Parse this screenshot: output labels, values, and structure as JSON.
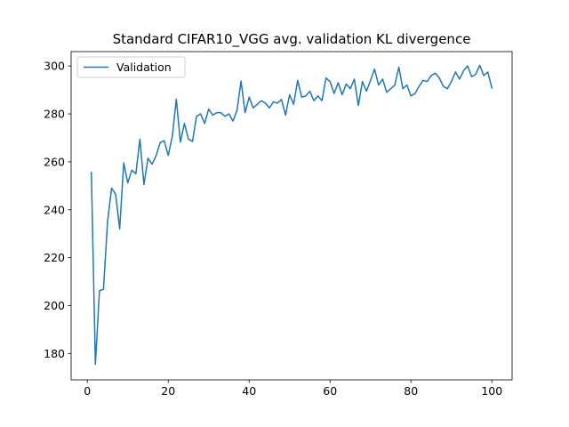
{
  "chart_data": {
    "type": "line",
    "title": "Standard CIFAR10_VGG avg. validation KL divergence",
    "xlabel": "",
    "ylabel": "",
    "xlim": [
      -4,
      105
    ],
    "ylim": [
      169,
      306
    ],
    "xticks": [
      0,
      20,
      40,
      60,
      80,
      100
    ],
    "yticks": [
      180,
      200,
      220,
      240,
      260,
      280,
      300
    ],
    "grid": false,
    "legend_placement": "top-left",
    "series": [
      {
        "name": "Validation",
        "color": "#1f77b4",
        "x": [
          1,
          2,
          3,
          4,
          5,
          6,
          7,
          8,
          9,
          10,
          11,
          12,
          13,
          14,
          15,
          16,
          17,
          18,
          19,
          20,
          21,
          22,
          23,
          24,
          25,
          26,
          27,
          28,
          29,
          30,
          31,
          32,
          33,
          34,
          35,
          36,
          37,
          38,
          39,
          40,
          41,
          42,
          43,
          44,
          45,
          46,
          47,
          48,
          49,
          50,
          51,
          52,
          53,
          54,
          55,
          56,
          57,
          58,
          59,
          60,
          61,
          62,
          63,
          64,
          65,
          66,
          67,
          68,
          69,
          70,
          71,
          72,
          73,
          74,
          75,
          76,
          77,
          78,
          79,
          80,
          81,
          82,
          83,
          84,
          85,
          86,
          87,
          88,
          89,
          90,
          91,
          92,
          93,
          94,
          95,
          96,
          97,
          98,
          99,
          100
        ],
        "values": [
          255.5,
          175.5,
          206.2,
          206.8,
          235.0,
          249.0,
          246.5,
          232.0,
          259.5,
          251.2,
          256.5,
          255.0,
          269.5,
          250.5,
          261.5,
          259.0,
          262.5,
          268.0,
          268.8,
          262.7,
          270.5,
          286.2,
          268.2,
          276.0,
          269.5,
          268.5,
          279.0,
          280.0,
          276.0,
          282.0,
          279.5,
          280.5,
          280.5,
          279.0,
          280.0,
          277.0,
          281.5,
          293.7,
          280.5,
          287.0,
          282.5,
          284.0,
          285.5,
          284.5,
          282.5,
          285.0,
          284.5,
          286.0,
          279.5,
          288.0,
          284.0,
          294.0,
          287.0,
          287.5,
          289.5,
          285.5,
          287.5,
          285.5,
          295.0,
          293.5,
          288.5,
          293.0,
          288.0,
          292.5,
          290.5,
          294.5,
          283.5,
          293.5,
          289.5,
          294.0,
          298.7,
          292.0,
          294.5,
          289.0,
          290.5,
          292.0,
          299.5,
          290.5,
          292.0,
          287.5,
          288.5,
          291.5,
          294.0,
          293.5,
          296.0,
          297.0,
          295.0,
          291.5,
          290.5,
          293.5,
          297.5,
          294.5,
          298.0,
          300.0,
          295.5,
          296.5,
          300.3,
          296.0,
          297.5,
          290.8
        ]
      }
    ]
  }
}
